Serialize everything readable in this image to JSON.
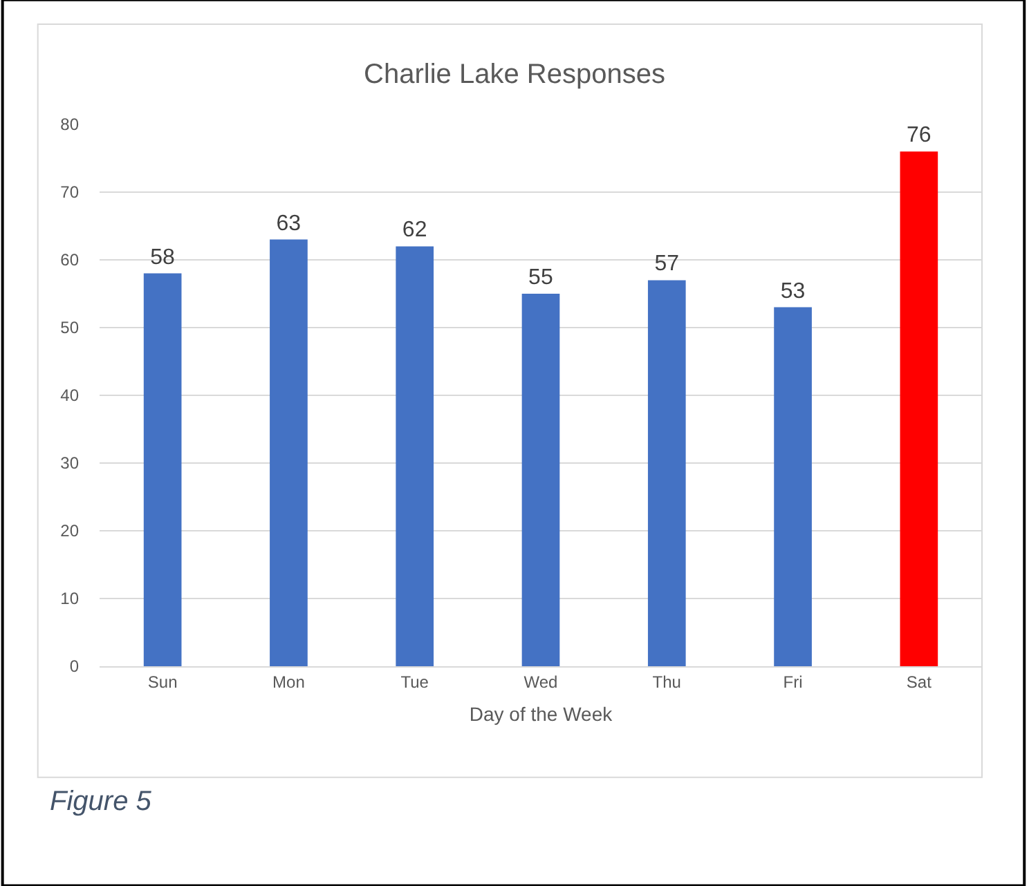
{
  "chart_data": {
    "type": "bar",
    "title": "Charlie Lake Responses",
    "xlabel": "Day of the Week",
    "categories": [
      "Sun",
      "Mon",
      "Tue",
      "Wed",
      "Thu",
      "Fri",
      "Sat"
    ],
    "values": [
      58,
      63,
      62,
      55,
      57,
      53,
      76
    ],
    "colors": [
      "#4472c4",
      "#4472c4",
      "#4472c4",
      "#4472c4",
      "#4472c4",
      "#4472c4",
      "#ff0000"
    ],
    "ylim": [
      0,
      80
    ],
    "yticks": [
      0,
      10,
      20,
      30,
      40,
      50,
      60,
      70,
      80
    ],
    "grid": "y",
    "data_labels": true,
    "annotations": [
      "Figure 5"
    ]
  }
}
